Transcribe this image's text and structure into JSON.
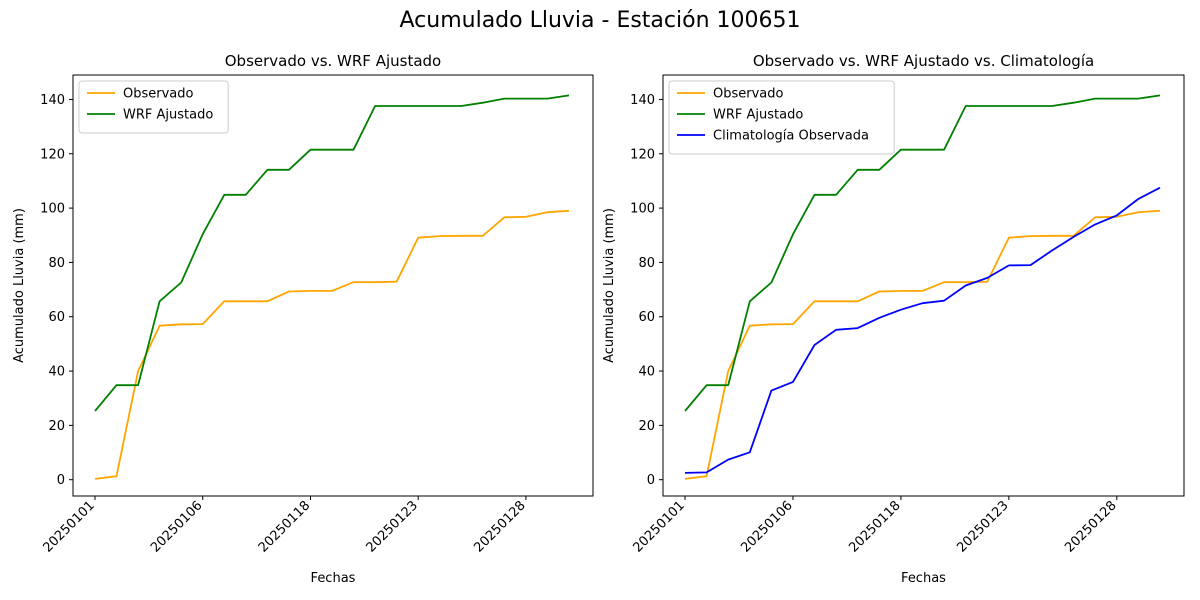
{
  "suptitle": "Acumulado Lluvia - Estación 100651",
  "chart_data": [
    {
      "type": "line",
      "title": "Observado vs. WRF Ajustado",
      "xlabel": "Fechas",
      "ylabel": "Acumulado Lluvia (mm)",
      "ylim": [
        -6,
        149
      ],
      "yticks": [
        0,
        20,
        40,
        60,
        80,
        100,
        120,
        140
      ],
      "xticks": [
        {
          "index": 0,
          "label": "20250101"
        },
        {
          "index": 5,
          "label": "20250106"
        },
        {
          "index": 10,
          "label": "20250118"
        },
        {
          "index": 15,
          "label": "20250123"
        },
        {
          "index": 20,
          "label": "20250128"
        }
      ],
      "x_count": 23,
      "legend_position": "upper-left",
      "series": [
        {
          "name": "Observado",
          "color": "#ffa500",
          "values": [
            0.3,
            1.3,
            40.0,
            56.7,
            57.2,
            57.3,
            65.7,
            65.7,
            65.7,
            69.3,
            69.5,
            69.5,
            72.7,
            72.7,
            72.9,
            89.1,
            89.7,
            89.8,
            89.8,
            96.6,
            96.8,
            98.5,
            99.0
          ]
        },
        {
          "name": "WRF Ajustado",
          "color": "#008000",
          "values": [
            25.3,
            34.8,
            34.8,
            65.7,
            72.6,
            90.4,
            104.9,
            104.9,
            114.1,
            114.1,
            121.5,
            121.5,
            121.5,
            137.6,
            137.6,
            137.6,
            137.6,
            137.6,
            138.8,
            140.3,
            140.3,
            140.3,
            141.5
          ]
        }
      ]
    },
    {
      "type": "line",
      "title": "Observado vs. WRF Ajustado vs. Climatología",
      "xlabel": "Fechas",
      "ylabel": "Acumulado Lluvia (mm)",
      "ylim": [
        -6,
        149
      ],
      "yticks": [
        0,
        20,
        40,
        60,
        80,
        100,
        120,
        140
      ],
      "xticks": [
        {
          "index": 0,
          "label": "20250101"
        },
        {
          "index": 5,
          "label": "20250106"
        },
        {
          "index": 10,
          "label": "20250118"
        },
        {
          "index": 15,
          "label": "20250123"
        },
        {
          "index": 20,
          "label": "20250128"
        }
      ],
      "x_count": 23,
      "legend_position": "upper-left",
      "series": [
        {
          "name": "Observado",
          "color": "#ffa500",
          "values": [
            0.3,
            1.3,
            40.0,
            56.7,
            57.2,
            57.3,
            65.7,
            65.7,
            65.7,
            69.3,
            69.5,
            69.5,
            72.7,
            72.7,
            72.9,
            89.1,
            89.7,
            89.8,
            89.8,
            96.6,
            96.8,
            98.5,
            99.0
          ]
        },
        {
          "name": "WRF Ajustado",
          "color": "#008000",
          "values": [
            25.3,
            34.8,
            34.8,
            65.7,
            72.6,
            90.4,
            104.9,
            104.9,
            114.1,
            114.1,
            121.5,
            121.5,
            121.5,
            137.6,
            137.6,
            137.6,
            137.6,
            137.6,
            138.8,
            140.3,
            140.3,
            140.3,
            141.5
          ]
        },
        {
          "name": "Climatología Observada",
          "color": "#0000ff",
          "values": [
            2.5,
            2.7,
            7.4,
            10.1,
            32.8,
            36.0,
            49.6,
            55.2,
            55.8,
            59.6,
            62.6,
            65.0,
            65.9,
            71.5,
            74.3,
            78.9,
            79.0,
            84.4,
            89.4,
            94.0,
            97.3,
            103.4,
            107.5
          ]
        }
      ]
    }
  ]
}
